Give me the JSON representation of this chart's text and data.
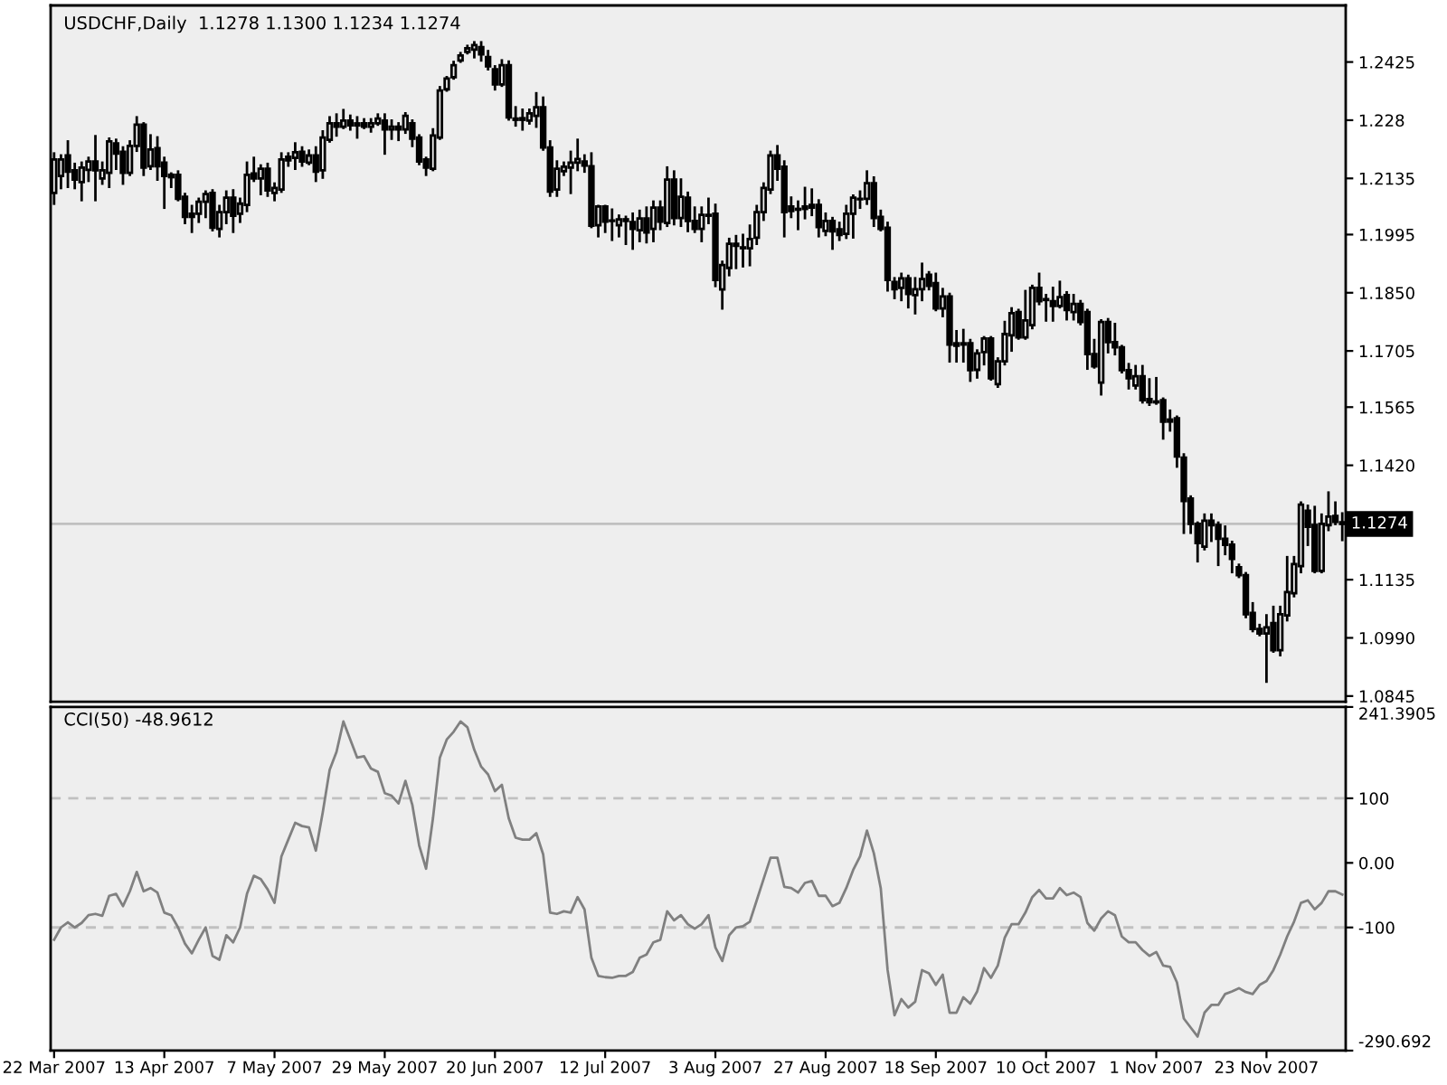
{
  "chart_data": [
    {
      "type": "candlestick",
      "title": "USDCHF,Daily  1.1278 1.1300 1.1234 1.1274",
      "color": "#000000",
      "categories": [
        null,
        null,
        null,
        null,
        null,
        null,
        null,
        null,
        null,
        null,
        null,
        null,
        null,
        null,
        null,
        null,
        null,
        null,
        null,
        null,
        null,
        null,
        null,
        null,
        null,
        null,
        null,
        null,
        null,
        null,
        null,
        null,
        null,
        null,
        null,
        null,
        null,
        null,
        null,
        null,
        null,
        null,
        null,
        null,
        null,
        null,
        null,
        null,
        null,
        null,
        null,
        null,
        null,
        null,
        null,
        null,
        null,
        null,
        null,
        null,
        null,
        null,
        null,
        null,
        null,
        null,
        null,
        null,
        null,
        null,
        null,
        null,
        null,
        null,
        null,
        null,
        null,
        null,
        null,
        null,
        null,
        null,
        null,
        null,
        null,
        null,
        null,
        null,
        null,
        null,
        null,
        null,
        null,
        null,
        null,
        null,
        null,
        null,
        null,
        null,
        null,
        null,
        null,
        null,
        null,
        null,
        null,
        null,
        null,
        null,
        null,
        null,
        null,
        null,
        null,
        null,
        null,
        null,
        null,
        null,
        null,
        null,
        null,
        null,
        null,
        null,
        null,
        null,
        null,
        null,
        null,
        null,
        null,
        null,
        null,
        null,
        null,
        null,
        null,
        null,
        null,
        null,
        null,
        null,
        null,
        null,
        null,
        null,
        null,
        null,
        null,
        null,
        null,
        null,
        null,
        null,
        null,
        null,
        null,
        null,
        null,
        null,
        null,
        null,
        null,
        null,
        null,
        null,
        null,
        null,
        null,
        null,
        null,
        null,
        null,
        null,
        null,
        null,
        null,
        null,
        null,
        null,
        null,
        null,
        null,
        null,
        null,
        null
      ],
      "ohlc": [
        [
          1.2099,
          1.2197,
          1.2072,
          1.2182
        ],
        [
          1.2141,
          1.2192,
          1.2111,
          1.2182
        ],
        [
          1.2192,
          1.2227,
          1.2114,
          1.2152
        ],
        [
          1.2155,
          1.2171,
          1.2111,
          1.2132
        ],
        [
          1.2126,
          1.2174,
          1.2081,
          1.2162
        ],
        [
          1.2156,
          1.2186,
          1.2129,
          1.2177
        ],
        [
          1.2177,
          1.224,
          1.2081,
          1.2155
        ],
        [
          1.2135,
          1.2174,
          1.2122,
          1.2155
        ],
        [
          1.2149,
          1.2234,
          1.2114,
          1.2227
        ],
        [
          1.2222,
          1.2231,
          1.2159,
          1.2197
        ],
        [
          1.2201,
          1.2212,
          1.2122,
          1.2149
        ],
        [
          1.2149,
          1.2227,
          1.2144,
          1.2216
        ],
        [
          1.2216,
          1.2287,
          1.2204,
          1.2269
        ],
        [
          1.2269,
          1.2272,
          1.2144,
          1.2162
        ],
        [
          1.2165,
          1.2242,
          1.2159,
          1.2207
        ],
        [
          1.221,
          1.2237,
          1.2132,
          1.2165
        ],
        [
          1.2174,
          1.2186,
          1.2062,
          1.2141
        ],
        [
          1.2144,
          1.2147,
          1.2114,
          1.2138
        ],
        [
          1.2144,
          1.2152,
          1.2081,
          1.2084
        ],
        [
          1.2089,
          1.2096,
          1.2024,
          1.2039
        ],
        [
          1.2047,
          1.2066,
          1.2002,
          1.2039
        ],
        [
          1.2047,
          1.2084,
          1.2027,
          1.2077
        ],
        [
          1.2077,
          1.2102,
          1.2039,
          1.2096
        ],
        [
          1.2099,
          1.2105,
          1.2006,
          1.2012
        ],
        [
          1.2009,
          1.2066,
          1.1991,
          1.2051
        ],
        [
          1.2051,
          1.2102,
          1.2024,
          1.2087
        ],
        [
          1.2087,
          1.2105,
          1.2002,
          1.2042
        ],
        [
          1.2047,
          1.2084,
          1.2027,
          1.2072
        ],
        [
          1.2069,
          1.2174,
          1.2054,
          1.2144
        ],
        [
          1.2147,
          1.2186,
          1.2129,
          1.2135
        ],
        [
          1.2135,
          1.2167,
          1.2096,
          1.2159
        ],
        [
          1.2159,
          1.2171,
          1.2092,
          1.2105
        ],
        [
          1.2099,
          1.2122,
          1.2081,
          1.2111
        ],
        [
          1.2107,
          1.2197,
          1.2102,
          1.2182
        ],
        [
          1.2189,
          1.2197,
          1.2167,
          1.218
        ],
        [
          1.2186,
          1.2222,
          1.2159,
          1.22
        ],
        [
          1.2201,
          1.2212,
          1.2167,
          1.2177
        ],
        [
          1.2174,
          1.2204,
          1.2171,
          1.2192
        ],
        [
          1.2192,
          1.2212,
          1.2129,
          1.2152
        ],
        [
          1.2155,
          1.2252,
          1.2137,
          1.2237
        ],
        [
          1.2231,
          1.2287,
          1.2227,
          1.2272
        ],
        [
          1.2272,
          1.2294,
          1.2242,
          1.2264
        ],
        [
          1.2264,
          1.2305,
          1.2261,
          1.2279
        ],
        [
          1.2279,
          1.2291,
          1.2257,
          1.2267
        ],
        [
          1.2267,
          1.2287,
          1.2237,
          1.2272
        ],
        [
          1.2272,
          1.2282,
          1.2261,
          1.2264
        ],
        [
          1.2264,
          1.2282,
          1.2252,
          1.2272
        ],
        [
          1.2272,
          1.2294,
          1.2269,
          1.2284
        ],
        [
          1.2279,
          1.2294,
          1.2197,
          1.2257
        ],
        [
          1.2257,
          1.2279,
          1.2234,
          1.2264
        ],
        [
          1.2264,
          1.2272,
          1.2231,
          1.2257
        ],
        [
          1.2257,
          1.2297,
          1.2249,
          1.2291
        ],
        [
          1.2272,
          1.2279,
          1.2216,
          1.2234
        ],
        [
          1.2237,
          1.2242,
          1.2171,
          1.2177
        ],
        [
          1.2182,
          1.2186,
          1.2144,
          1.2162
        ],
        [
          1.2159,
          1.2257,
          1.2156,
          1.2242
        ],
        [
          1.2237,
          1.2362,
          1.2234,
          1.2354
        ],
        [
          1.2357,
          1.2387,
          1.2354,
          1.2384
        ],
        [
          1.2387,
          1.2425,
          1.2384,
          1.2417
        ],
        [
          1.2429,
          1.2447,
          1.2426,
          1.2441
        ],
        [
          1.245,
          1.2465,
          1.2447,
          1.2459
        ],
        [
          1.2456,
          1.2474,
          1.2437,
          1.2467
        ],
        [
          1.2462,
          1.2474,
          1.2429,
          1.2444
        ],
        [
          1.2437,
          1.2452,
          1.2407,
          1.2414
        ],
        [
          1.2407,
          1.2414,
          1.2357,
          1.2369
        ],
        [
          1.2369,
          1.2429,
          1.2366,
          1.2417
        ],
        [
          1.2417,
          1.2426,
          1.2282,
          1.2287
        ],
        [
          1.2284,
          1.2312,
          1.2267,
          1.2281
        ],
        [
          1.2285,
          1.2306,
          1.2257,
          1.2281
        ],
        [
          1.2279,
          1.2306,
          1.2272,
          1.2297
        ],
        [
          1.2291,
          1.2347,
          1.2264,
          1.2312
        ],
        [
          1.2312,
          1.2336,
          1.2207,
          1.2212
        ],
        [
          1.2212,
          1.2227,
          1.2092,
          1.2102
        ],
        [
          1.2107,
          1.2177,
          1.2092,
          1.2159
        ],
        [
          1.2153,
          1.2174,
          1.2144,
          1.2164
        ],
        [
          1.2162,
          1.2201,
          1.2099,
          1.2174
        ],
        [
          1.2174,
          1.2231,
          1.2156,
          1.2183
        ],
        [
          1.2177,
          1.2192,
          1.2152,
          1.2167
        ],
        [
          1.2165,
          1.2197,
          1.2014,
          1.2017
        ],
        [
          1.2018,
          1.2066,
          1.1991,
          1.2065
        ],
        [
          1.2065,
          1.2066,
          1.2002,
          1.2027
        ],
        [
          1.203,
          1.2057,
          1.1982,
          1.2029
        ],
        [
          1.2018,
          1.2042,
          1.1991,
          1.2033
        ],
        [
          1.2033,
          1.2039,
          1.1972,
          1.2029
        ],
        [
          1.2026,
          1.2047,
          1.196,
          1.2009
        ],
        [
          1.2006,
          1.2054,
          1.1979,
          1.2035
        ],
        [
          1.2035,
          1.2062,
          1.1976,
          1.2
        ],
        [
          1.2009,
          1.2077,
          1.1979,
          1.2062
        ],
        [
          1.2062,
          1.2077,
          1.2009,
          1.2027
        ],
        [
          1.2024,
          1.2162,
          1.2017,
          1.2132
        ],
        [
          1.2132,
          1.2152,
          1.2021,
          1.2036
        ],
        [
          1.2036,
          1.2132,
          1.2017,
          1.2089
        ],
        [
          1.2087,
          1.2099,
          1.2004,
          1.2029
        ],
        [
          1.2029,
          1.2062,
          1.2002,
          1.2009
        ],
        [
          1.2009,
          1.2062,
          1.1979,
          1.2044
        ],
        [
          1.2044,
          1.2084,
          1.2024,
          1.2042
        ],
        [
          1.2047,
          1.2069,
          1.1867,
          1.1882
        ],
        [
          1.1858,
          1.1927,
          1.1811,
          1.1919
        ],
        [
          1.1912,
          1.1984,
          1.1894,
          1.1972
        ],
        [
          1.1967,
          1.1991,
          1.1912,
          1.1972
        ],
        [
          1.1963,
          1.1994,
          1.1916,
          1.1961
        ],
        [
          1.1961,
          1.2017,
          1.1919,
          1.1984
        ],
        [
          1.1987,
          1.2066,
          1.1972,
          1.2051
        ],
        [
          1.2051,
          1.2122,
          1.2032,
          1.2111
        ],
        [
          1.2107,
          1.2201,
          1.2099,
          1.2192
        ],
        [
          1.2192,
          1.2215,
          1.2132,
          1.2159
        ],
        [
          1.2164,
          1.2177,
          1.1991,
          1.2051
        ],
        [
          1.2065,
          1.2087,
          1.2039,
          1.2054
        ],
        [
          1.2059,
          1.2077,
          1.2009,
          1.2057
        ],
        [
          1.2065,
          1.2111,
          1.2036,
          1.2059
        ],
        [
          1.2069,
          1.2107,
          1.2044,
          1.2062
        ],
        [
          1.2069,
          1.208,
          1.1991,
          1.2014
        ],
        [
          1.2004,
          1.2047,
          1.1994,
          1.2029
        ],
        [
          1.2029,
          1.2036,
          1.196,
          1.2003
        ],
        [
          1.2008,
          1.2024,
          1.1982,
          1.1994
        ],
        [
          1.1997,
          1.2066,
          1.1987,
          1.2047
        ],
        [
          1.2047,
          1.2092,
          1.1988,
          1.2087
        ],
        [
          1.2084,
          1.2102,
          1.2062,
          1.2083
        ],
        [
          1.2084,
          1.2152,
          1.2072,
          1.2123
        ],
        [
          1.2123,
          1.2137,
          1.2017,
          1.2036
        ],
        [
          1.2039,
          1.2054,
          1.2006,
          1.2009
        ],
        [
          1.2012,
          1.2024,
          1.1856,
          1.1882
        ],
        [
          1.1877,
          1.1886,
          1.1837,
          1.1859
        ],
        [
          1.1862,
          1.1897,
          1.1832,
          1.1886
        ],
        [
          1.1886,
          1.1892,
          1.1814,
          1.1847
        ],
        [
          1.1844,
          1.1886,
          1.1799,
          1.1859
        ],
        [
          1.1859,
          1.1922,
          1.1832,
          1.1884
        ],
        [
          1.1895,
          1.1901,
          1.1859,
          1.1867
        ],
        [
          1.1874,
          1.1897,
          1.1807,
          1.1811
        ],
        [
          1.1811,
          1.1859,
          1.1792,
          1.1841
        ],
        [
          1.1841,
          1.1847,
          1.1679,
          1.1721
        ],
        [
          1.1724,
          1.1754,
          1.1679,
          1.1718
        ],
        [
          1.1721,
          1.1757,
          1.1679,
          1.1724
        ],
        [
          1.1724,
          1.1732,
          1.1631,
          1.1657
        ],
        [
          1.1658,
          1.1706,
          1.1639,
          1.1699
        ],
        [
          1.1702,
          1.1739,
          1.1672,
          1.1736
        ],
        [
          1.1736,
          1.1739,
          1.1634,
          1.1637
        ],
        [
          1.1622,
          1.1686,
          1.1616,
          1.1679
        ],
        [
          1.1679,
          1.1777,
          1.1672,
          1.1747
        ],
        [
          1.1744,
          1.1811,
          1.1706,
          1.1799
        ],
        [
          1.1802,
          1.1807,
          1.1736,
          1.1739
        ],
        [
          1.1739,
          1.1854,
          1.1736,
          1.1781
        ],
        [
          1.1769,
          1.1867,
          1.1762,
          1.1862
        ],
        [
          1.1862,
          1.1897,
          1.1822,
          1.1829
        ],
        [
          1.1832,
          1.1844,
          1.1781,
          1.1834
        ],
        [
          1.1829,
          1.1862,
          1.1781,
          1.1817
        ],
        [
          1.1817,
          1.1877,
          1.1814,
          1.1839
        ],
        [
          1.1844,
          1.1851,
          1.1784,
          1.1807
        ],
        [
          1.1802,
          1.1844,
          1.1784,
          1.1822
        ],
        [
          1.1822,
          1.1829,
          1.1772,
          1.1777
        ],
        [
          1.1802,
          1.1807,
          1.1661,
          1.1697
        ],
        [
          1.1697,
          1.1732,
          1.1664,
          1.1667
        ],
        [
          1.1626,
          1.1781,
          1.1597,
          1.1777
        ],
        [
          1.1777,
          1.1784,
          1.1702,
          1.1727
        ],
        [
          1.1727,
          1.1772,
          1.1697,
          1.1714
        ],
        [
          1.1714,
          1.1717,
          1.1652,
          1.1657
        ],
        [
          1.1657,
          1.1672,
          1.1612,
          1.1637
        ],
        [
          1.1619,
          1.1667,
          1.1612,
          1.1642
        ],
        [
          1.1642,
          1.1667,
          1.1577,
          1.1582
        ],
        [
          1.1585,
          1.1634,
          1.1571,
          1.1577
        ],
        [
          1.1579,
          1.1637,
          1.1574,
          1.1577
        ],
        [
          1.1582,
          1.1586,
          1.1487,
          1.1529
        ],
        [
          1.1534,
          1.1556,
          1.1507,
          1.1529
        ],
        [
          1.1537,
          1.1541,
          1.1417,
          1.1442
        ],
        [
          1.1439,
          1.1447,
          1.1252,
          1.1331
        ],
        [
          1.1337,
          1.1342,
          1.1252,
          1.1274
        ],
        [
          1.1274,
          1.1277,
          1.1181,
          1.1226
        ],
        [
          1.1217,
          1.1297,
          1.1211,
          1.1282
        ],
        [
          1.1282,
          1.1297,
          1.1232,
          1.1271
        ],
        [
          1.1271,
          1.1277,
          1.1172,
          1.1237
        ],
        [
          1.1237,
          1.1267,
          1.1199,
          1.1222
        ],
        [
          1.1222,
          1.1229,
          1.1154,
          1.1187
        ],
        [
          1.1166,
          1.1172,
          1.1142,
          1.1146
        ],
        [
          1.1146,
          1.1151,
          1.1042,
          1.1049
        ],
        [
          1.1052,
          1.1076,
          1.1007,
          1.1012
        ],
        [
          1.1012,
          1.1022,
          1.0997,
          1.1001
        ],
        [
          1.1001,
          1.1046,
          1.0881,
          1.1016
        ],
        [
          1.1027,
          1.1067,
          1.0956,
          1.0959
        ],
        [
          1.0959,
          1.1067,
          1.0947,
          1.1049
        ],
        [
          1.1046,
          1.1191,
          1.1034,
          1.1104
        ],
        [
          1.1101,
          1.1191,
          1.1094,
          1.1174
        ],
        [
          1.1169,
          1.1327,
          1.1154,
          1.1322
        ],
        [
          1.1307,
          1.1319,
          1.1222,
          1.1267
        ],
        [
          1.1271,
          1.1316,
          1.1154,
          1.1157
        ],
        [
          1.1157,
          1.1297,
          1.1154,
          1.1274
        ],
        [
          1.1271,
          1.1352,
          1.1259,
          1.1292
        ],
        [
          1.1294,
          1.1327,
          1.1274,
          1.1279
        ],
        [
          1.1278,
          1.13,
          1.1234,
          1.1274
        ]
      ],
      "ylim": [
        1.0831,
        1.2566
      ],
      "yticks": [
        1.2425,
        1.228,
        {
          "value": 1.2135,
          "label": "1.2135"
        },
        1.1995,
        {
          "value": 1.185,
          "label": "1.1850"
        },
        1.1705,
        1.1565,
        {
          "value": 1.142,
          "label": "1.1420"
        },
        1.1135,
        {
          "value": 1.099,
          "label": "1.0990"
        },
        1.0845
      ],
      "ref_lines": [
        {
          "axis": "y",
          "value": 1.1274,
          "label": "1.1274",
          "color": "#c0c0c0",
          "line_style": "solid"
        }
      ]
    },
    {
      "type": "line",
      "title": "CCI(50) -48.9612",
      "color": "#808080",
      "categories": [
        "22 Mar 2007",
        null,
        null,
        null,
        null,
        null,
        null,
        null,
        null,
        null,
        null,
        null,
        null,
        null,
        null,
        null,
        "13 Apr 2007",
        null,
        null,
        null,
        null,
        null,
        null,
        null,
        null,
        null,
        null,
        null,
        null,
        null,
        null,
        null,
        "7 May 2007",
        null,
        null,
        null,
        null,
        null,
        null,
        null,
        null,
        null,
        null,
        null,
        null,
        null,
        null,
        null,
        "29 May 2007",
        null,
        null,
        null,
        null,
        null,
        null,
        null,
        null,
        null,
        null,
        null,
        null,
        null,
        null,
        null,
        "20 Jun 2007",
        null,
        null,
        null,
        null,
        null,
        null,
        null,
        null,
        null,
        null,
        null,
        null,
        null,
        null,
        null,
        "12 Jul 2007",
        null,
        null,
        null,
        null,
        null,
        null,
        null,
        null,
        null,
        null,
        null,
        null,
        null,
        null,
        null,
        "3 Aug 2007",
        null,
        null,
        null,
        null,
        null,
        null,
        null,
        null,
        null,
        null,
        null,
        null,
        null,
        null,
        null,
        "27 Aug 2007",
        null,
        null,
        null,
        null,
        null,
        null,
        null,
        null,
        null,
        null,
        null,
        null,
        null,
        null,
        null,
        "18 Sep 2007",
        null,
        null,
        null,
        null,
        null,
        null,
        null,
        null,
        null,
        null,
        null,
        null,
        null,
        null,
        null,
        "10 Oct 2007",
        null,
        null,
        null,
        null,
        null,
        null,
        null,
        null,
        null,
        null,
        null,
        null,
        null,
        null,
        null,
        "1 Nov 2007",
        null,
        null,
        null,
        null,
        null,
        null,
        null,
        null,
        null,
        null,
        null,
        null,
        null,
        null,
        null,
        "23 Nov 2007",
        null,
        null,
        null,
        null,
        null,
        null,
        null,
        null,
        null,
        null,
        null
      ],
      "values": [
        -119,
        -100,
        -92,
        -100,
        -93,
        -81,
        -79,
        -82,
        -51,
        -48,
        -67,
        -44,
        -14,
        -44,
        -39,
        -46,
        -77,
        -81,
        -100,
        -125,
        -140,
        -119,
        -100,
        -144,
        -150,
        -112,
        -123,
        -100,
        -48,
        -20,
        -25,
        -41,
        -62,
        10,
        36,
        62,
        57,
        55,
        19,
        78,
        144,
        172,
        219,
        191,
        163,
        165,
        146,
        141,
        108,
        104,
        92,
        127,
        90,
        27,
        -9,
        69,
        163,
        191,
        203,
        219,
        210,
        175,
        149,
        137,
        111,
        121,
        69,
        39,
        36,
        36,
        46,
        13,
        -77,
        -79,
        -75,
        -77,
        -53,
        -72,
        -147,
        -175,
        -177,
        -178,
        -175,
        -175,
        -169,
        -147,
        -142,
        -123,
        -119,
        -75,
        -89,
        -81,
        -95,
        -102,
        -95,
        -81,
        -131,
        -152,
        -112,
        -100,
        -98,
        -91,
        -58,
        -25,
        8,
        8,
        -37,
        -39,
        -46,
        -31,
        -28,
        -51,
        -51,
        -67,
        -62,
        -39,
        -11,
        10,
        50,
        15,
        -39,
        -166,
        -236,
        -211,
        -224,
        -215,
        -166,
        -171,
        -189,
        -173,
        -232,
        -232,
        -208,
        -218,
        -199,
        -163,
        -178,
        -159,
        -116,
        -95,
        -95,
        -77,
        -53,
        -42,
        -55,
        -55,
        -39,
        -50,
        -46,
        -53,
        -93,
        -105,
        -86,
        -75,
        -81,
        -114,
        -123,
        -123,
        -135,
        -144,
        -138,
        -159,
        -161,
        -185,
        -241,
        -255,
        -269,
        -232,
        -220,
        -220,
        -203,
        -199,
        -194,
        -200,
        -203,
        -189,
        -183,
        -166,
        -142,
        -114,
        -91,
        -62,
        -58,
        -72,
        -62,
        -44,
        -44,
        -49
      ],
      "ylim": [
        -290.692,
        241.3905
      ],
      "yticks": [
        241.3905,
        100,
        {
          "value": 0,
          "label": "0.00"
        },
        -100,
        -290.692
      ],
      "ref_lines": [
        {
          "axis": "y",
          "value": 100,
          "color": "#c0c0c0",
          "line_style": "dashed"
        },
        {
          "axis": "y",
          "value": -100,
          "color": "#c0c0c0",
          "line_style": "dashed"
        }
      ]
    }
  ]
}
